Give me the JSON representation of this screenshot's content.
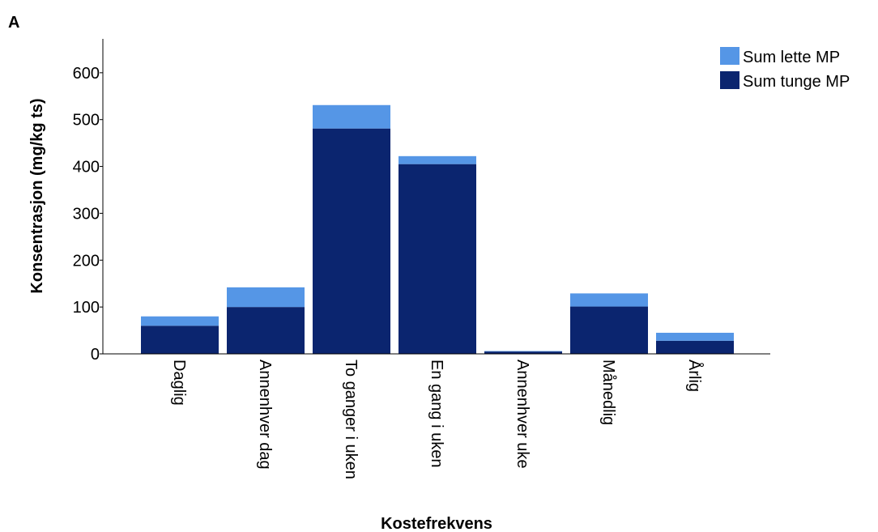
{
  "panel_label": "A",
  "colors": {
    "light": "#5596e6",
    "heavy": "#0b256f",
    "axis": "#000000"
  },
  "chart_data": {
    "type": "bar",
    "stacked": true,
    "title": "",
    "xlabel": "Kostefrekvens",
    "ylabel": "Konsentrasjon (mg/kg ts)",
    "ylim": [
      0,
      665
    ],
    "yticks": [
      0,
      100,
      200,
      300,
      400,
      500,
      600
    ],
    "categories": [
      "Daglig",
      "Annenhver dag",
      "To ganger i uken",
      "En gang i uken",
      "Annenhver uke",
      "Månedlig",
      "Årlig"
    ],
    "series": [
      {
        "name": "Sum tunge MP",
        "color": "#0b256f",
        "values": [
          60,
          100,
          481,
          405,
          5,
          101,
          28
        ]
      },
      {
        "name": "Sum lette MP",
        "color": "#5596e6",
        "values": [
          20,
          42,
          50,
          17,
          1,
          28,
          17
        ]
      }
    ],
    "legend": {
      "position": "top-right",
      "entries": [
        {
          "name": "Sum lette MP",
          "color": "#5596e6"
        },
        {
          "name": "Sum tunge MP",
          "color": "#0b256f"
        }
      ]
    }
  }
}
